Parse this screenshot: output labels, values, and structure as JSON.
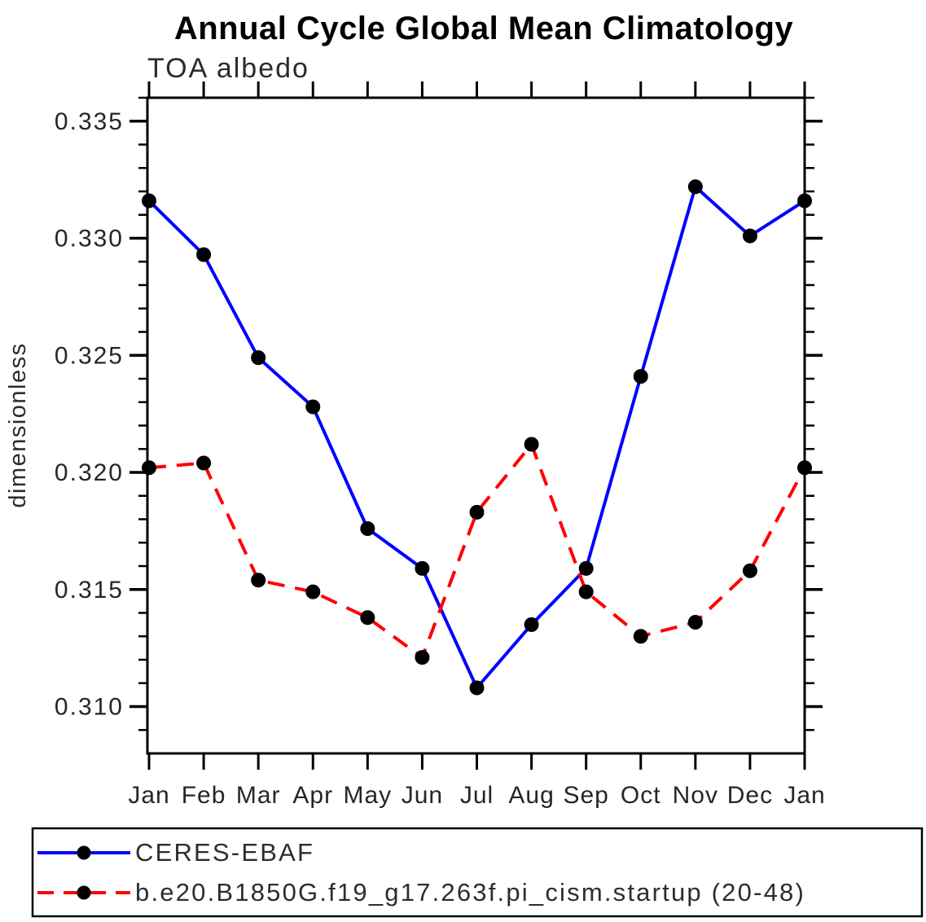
{
  "chart_data": {
    "type": "line",
    "title": "Annual Cycle Global Mean Climatology",
    "subtitle": "TOA albedo",
    "ylabel": "dimensionless",
    "xlabel": "",
    "categories": [
      "Jan",
      "Feb",
      "Mar",
      "Apr",
      "May",
      "Jun",
      "Jul",
      "Aug",
      "Sep",
      "Oct",
      "Nov",
      "Dec",
      "Jan"
    ],
    "ylim": [
      0.308,
      0.336
    ],
    "y_major_ticks": [
      0.31,
      0.315,
      0.32,
      0.325,
      0.33,
      0.335
    ],
    "y_minor_step": 0.001,
    "grid": "off",
    "legend_position": "bottom",
    "marker": {
      "shape": "circle",
      "color": "#000000"
    },
    "series": [
      {
        "name": "CERES-EBAF",
        "color": "#0000ff",
        "line_style": "solid",
        "values": [
          0.3316,
          0.3293,
          0.3249,
          0.3228,
          0.3176,
          0.3159,
          0.3108,
          0.3135,
          0.3159,
          0.3241,
          0.3322,
          0.3301,
          0.3316
        ]
      },
      {
        "name": "b.e20.B1850G.f19_g17.263f.pi_cism.startup (20-48)",
        "color": "#ff0000",
        "line_style": "dashed",
        "values": [
          0.3202,
          0.3204,
          0.3154,
          0.3149,
          0.3138,
          0.3121,
          0.3183,
          0.3212,
          0.3149,
          0.313,
          0.3136,
          0.3158,
          0.3202
        ]
      }
    ]
  }
}
